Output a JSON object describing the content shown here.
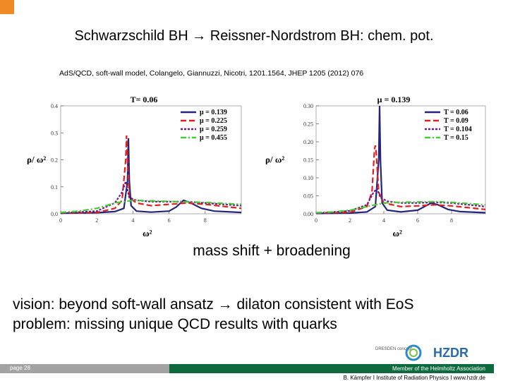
{
  "slide": {
    "title": "Schwarzschild BH → Reissner-Nordstrom BH: chem. pot.",
    "citation": "AdS/QCD, soft-wall model, Colangelo, Giannuzzi, Nicotri, 1201.1564, JHEP 1205 (2012) 076",
    "caption": "mass shift + broadening",
    "vision": "vision: beyond soft-wall ansatz → dilaton consistent with EoS",
    "problem": "problem: missing unique QCD results with quarks",
    "footer": {
      "page": "page 28",
      "member": "Member of the Helmholtz Association",
      "address": "B. Kämpfer  I  Institute of Radiation Physics  I  www.hzdr.de"
    },
    "logos": {
      "dresden": "DRESDEN concept",
      "hzdr": "HZDR"
    }
  },
  "colors": {
    "accent_orange": "#f08a24",
    "footer_green": "#0c6a3c",
    "footer_grey": "#a3a3a3"
  },
  "chart_data": [
    {
      "type": "line",
      "title": "T= 0.06",
      "xlabel": "ω²",
      "ylabel": "ρ/ ω²",
      "xlim": [
        0,
        10
      ],
      "ylim": [
        0,
        0.4
      ],
      "x_ticks": [
        "0",
        "2",
        "4",
        "6",
        "8"
      ],
      "x_tick_values": [
        0,
        2,
        4,
        6,
        8
      ],
      "y_ticks": [
        "0.0",
        "0.1",
        "0.2",
        "0.3",
        "0.4"
      ],
      "y_tick_values": [
        0,
        0.1,
        0.2,
        0.3,
        0.4
      ],
      "legend_position": "top-right",
      "series": [
        {
          "name": "μ = 0.139",
          "color": "#24247a",
          "dash": "solid",
          "points": [
            [
              0,
              0.002
            ],
            [
              2,
              0.004
            ],
            [
              3,
              0.008
            ],
            [
              3.5,
              0.02
            ],
            [
              3.7,
              0.12
            ],
            [
              3.75,
              0.28
            ],
            [
              3.8,
              0.12
            ],
            [
              3.9,
              0.03
            ],
            [
              4.2,
              0.01
            ],
            [
              5,
              0.006
            ],
            [
              6,
              0.01
            ],
            [
              6.4,
              0.025
            ],
            [
              6.8,
              0.05
            ],
            [
              7.2,
              0.04
            ],
            [
              7.8,
              0.02
            ],
            [
              8.5,
              0.01
            ],
            [
              10,
              0.005
            ]
          ]
        },
        {
          "name": "μ = 0.225",
          "color": "#e02020",
          "dash": "8,4",
          "points": [
            [
              0,
              0.003
            ],
            [
              2,
              0.005
            ],
            [
              3,
              0.02
            ],
            [
              3.4,
              0.05
            ],
            [
              3.6,
              0.2
            ],
            [
              3.65,
              0.29
            ],
            [
              3.7,
              0.2
            ],
            [
              3.8,
              0.06
            ],
            [
              4.2,
              0.04
            ],
            [
              5,
              0.03
            ],
            [
              6,
              0.035
            ],
            [
              7,
              0.04
            ],
            [
              8,
              0.035
            ],
            [
              10,
              0.02
            ]
          ]
        },
        {
          "name": "μ = 0.259",
          "color": "#6a1a8a",
          "dash": "3,2",
          "points": [
            [
              0,
              0.003
            ],
            [
              2,
              0.01
            ],
            [
              3,
              0.04
            ],
            [
              3.4,
              0.08
            ],
            [
              3.6,
              0.12
            ],
            [
              3.8,
              0.06
            ],
            [
              4.2,
              0.05
            ],
            [
              5,
              0.045
            ],
            [
              6,
              0.045
            ],
            [
              7,
              0.045
            ],
            [
              8,
              0.04
            ],
            [
              10,
              0.03
            ]
          ]
        },
        {
          "name": "μ = 0.455",
          "color": "#44cc33",
          "dash": "8,3,2,3",
          "points": [
            [
              0,
              0.005
            ],
            [
              1,
              0.01
            ],
            [
              2,
              0.02
            ],
            [
              3,
              0.04
            ],
            [
              4,
              0.05
            ],
            [
              5,
              0.048
            ],
            [
              6,
              0.046
            ],
            [
              7,
              0.044
            ],
            [
              8,
              0.042
            ],
            [
              10,
              0.035
            ]
          ]
        }
      ]
    },
    {
      "type": "line",
      "title": "μ = 0.139",
      "xlabel": "ω²",
      "ylabel": "ρ/ ω²",
      "xlim": [
        0,
        10
      ],
      "ylim": [
        0,
        0.3
      ],
      "x_ticks": [
        "0",
        "2",
        "4",
        "6",
        "8"
      ],
      "x_tick_values": [
        0,
        2,
        4,
        6,
        8
      ],
      "y_ticks": [
        "0.00",
        "0.05",
        "0.10",
        "0.15",
        "0.20",
        "0.25",
        "0.30"
      ],
      "y_tick_values": [
        0,
        0.05,
        0.1,
        0.15,
        0.2,
        0.25,
        0.3
      ],
      "legend_position": "top-right",
      "series": [
        {
          "name": "T = 0.06",
          "color": "#24247a",
          "dash": "solid",
          "points": [
            [
              0,
              0.001
            ],
            [
              2,
              0.002
            ],
            [
              3,
              0.005
            ],
            [
              3.5,
              0.02
            ],
            [
              3.7,
              0.15
            ],
            [
              3.75,
              0.3
            ],
            [
              3.8,
              0.15
            ],
            [
              3.9,
              0.03
            ],
            [
              4.2,
              0.01
            ],
            [
              5,
              0.005
            ],
            [
              6,
              0.01
            ],
            [
              6.4,
              0.02
            ],
            [
              6.8,
              0.03
            ],
            [
              7.2,
              0.025
            ],
            [
              7.8,
              0.012
            ],
            [
              8.5,
              0.006
            ],
            [
              10,
              0.003
            ]
          ]
        },
        {
          "name": "T = 0.09",
          "color": "#e02020",
          "dash": "8,4",
          "points": [
            [
              0,
              0.002
            ],
            [
              2,
              0.004
            ],
            [
              3,
              0.02
            ],
            [
              3.3,
              0.06
            ],
            [
              3.45,
              0.18
            ],
            [
              3.5,
              0.19
            ],
            [
              3.55,
              0.17
            ],
            [
              3.7,
              0.06
            ],
            [
              4,
              0.03
            ],
            [
              5,
              0.02
            ],
            [
              6,
              0.022
            ],
            [
              7,
              0.025
            ],
            [
              8,
              0.022
            ],
            [
              10,
              0.012
            ]
          ]
        },
        {
          "name": "T = 0.104",
          "color": "#6a1a8a",
          "dash": "3,2",
          "points": [
            [
              0,
              0.002
            ],
            [
              2,
              0.008
            ],
            [
              3,
              0.025
            ],
            [
              3.4,
              0.06
            ],
            [
              3.6,
              0.07
            ],
            [
              3.8,
              0.045
            ],
            [
              4.2,
              0.035
            ],
            [
              5,
              0.03
            ],
            [
              6,
              0.03
            ],
            [
              7,
              0.032
            ],
            [
              8,
              0.03
            ],
            [
              10,
              0.02
            ]
          ]
        },
        {
          "name": "T = 0.15",
          "color": "#44cc33",
          "dash": "8,3,2,3",
          "points": [
            [
              0,
              0.003
            ],
            [
              1,
              0.005
            ],
            [
              2,
              0.01
            ],
            [
              3,
              0.02
            ],
            [
              4,
              0.03
            ],
            [
              5,
              0.032
            ],
            [
              6,
              0.033
            ],
            [
              7,
              0.034
            ],
            [
              8,
              0.032
            ],
            [
              10,
              0.025
            ]
          ]
        }
      ]
    }
  ]
}
